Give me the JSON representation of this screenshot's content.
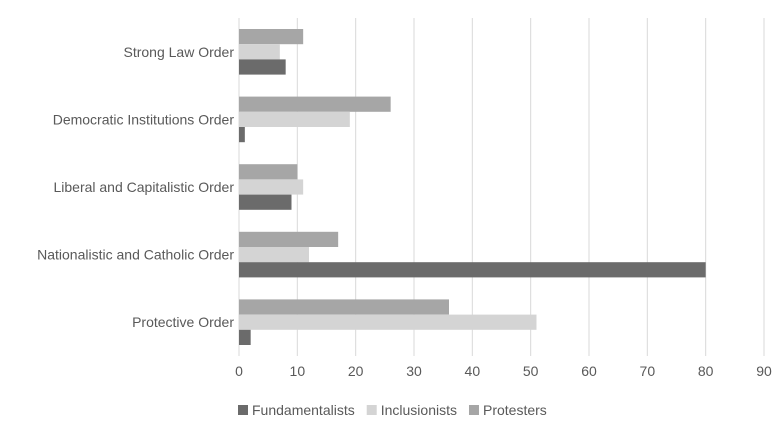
{
  "chart_data": {
    "type": "bar",
    "orientation": "horizontal",
    "categories": [
      "Strong Law Order",
      "Democratic Institutions Order",
      "Liberal and Capitalistic Order",
      "Nationalistic and Catholic Order",
      "Protective Order"
    ],
    "series": [
      {
        "name": "Fundamentalists",
        "color": "#6b6b6b",
        "values": [
          8,
          1,
          9,
          80,
          2
        ]
      },
      {
        "name": "Inclusionists",
        "color": "#d4d4d4",
        "values": [
          7,
          19,
          11,
          12,
          51
        ]
      },
      {
        "name": "Protesters",
        "color": "#a6a6a6",
        "values": [
          11,
          26,
          10,
          17,
          36
        ]
      }
    ],
    "xlim": [
      0,
      90
    ],
    "xticks": [
      0,
      10,
      20,
      30,
      40,
      50,
      60,
      70,
      80,
      90
    ],
    "grid": "vertical",
    "legend_position": "bottom"
  }
}
